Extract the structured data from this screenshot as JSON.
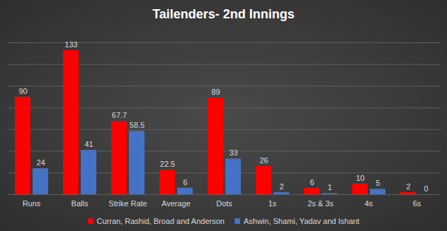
{
  "chart_data": {
    "type": "bar",
    "title": "Tailenders- 2nd Innings",
    "categories": [
      "Runs",
      "Balls",
      "Strike Rate",
      "Average",
      "Dots",
      "1s",
      "2s & 3s",
      "4s",
      "6s"
    ],
    "series": [
      {
        "name": "Curran, Rashid, Broad and Anderson",
        "color": "#ff0000",
        "values": [
          90,
          133,
          67.7,
          22.5,
          89,
          26,
          6,
          10,
          2
        ]
      },
      {
        "name": "Ashwin, Shami, Yadav and Ishant",
        "color": "#4472c4",
        "values": [
          24,
          41,
          58.5,
          6,
          33,
          2,
          1,
          5,
          0
        ]
      }
    ],
    "ylim": [
      0,
      140
    ],
    "yticks": [
      0,
      20,
      40,
      60,
      80,
      100,
      120,
      140
    ],
    "grid": true,
    "data_labels": true,
    "tick_labels": "x",
    "legend": "bottom"
  }
}
